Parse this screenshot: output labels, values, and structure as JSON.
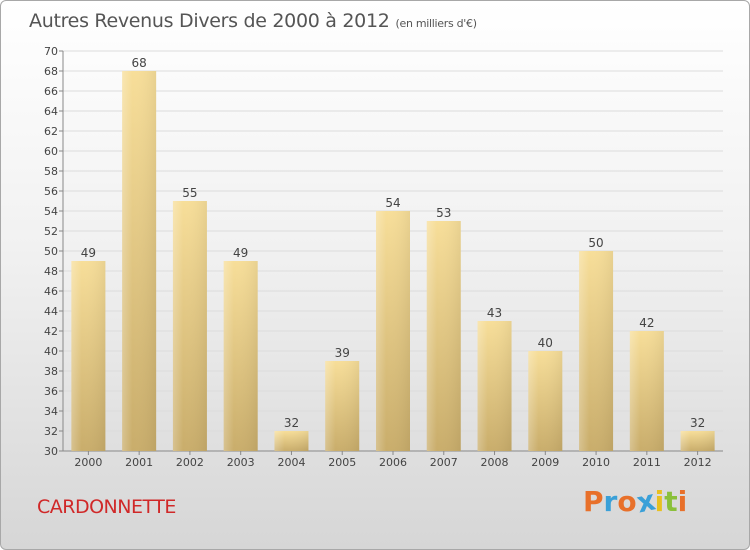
{
  "header": {
    "title": "Autres Revenus Divers de 2000 à 2012",
    "subtitle": "(en milliers d'€)"
  },
  "footer": {
    "commune": "CARDONNETTE",
    "logo_text": "Proxiti"
  },
  "colors": {
    "commune": "#d02828",
    "bar_light": "#f7de99",
    "bar_dark": "#c9ad6b",
    "logo": [
      "#e8702a",
      "#3aa0d8",
      "#e8702a",
      "#3aa0d8",
      "#e8c020",
      "#8ac03a",
      "#e8702a"
    ]
  },
  "chart_data": {
    "type": "bar",
    "categories": [
      "2000",
      "2001",
      "2002",
      "2003",
      "2004",
      "2005",
      "2006",
      "2007",
      "2008",
      "2009",
      "2010",
      "2011",
      "2012"
    ],
    "values": [
      49,
      68,
      55,
      49,
      32,
      39,
      54,
      53,
      43,
      40,
      50,
      42,
      32
    ],
    "ylim": [
      30,
      70
    ],
    "yticks": [
      30,
      32,
      34,
      36,
      38,
      40,
      42,
      44,
      46,
      48,
      50,
      52,
      54,
      56,
      58,
      60,
      62,
      64,
      66,
      68,
      70
    ],
    "title": "Autres Revenus Divers de 2000 à 2012",
    "xlabel": "",
    "ylabel": "",
    "grid": true,
    "data_labels": true
  }
}
